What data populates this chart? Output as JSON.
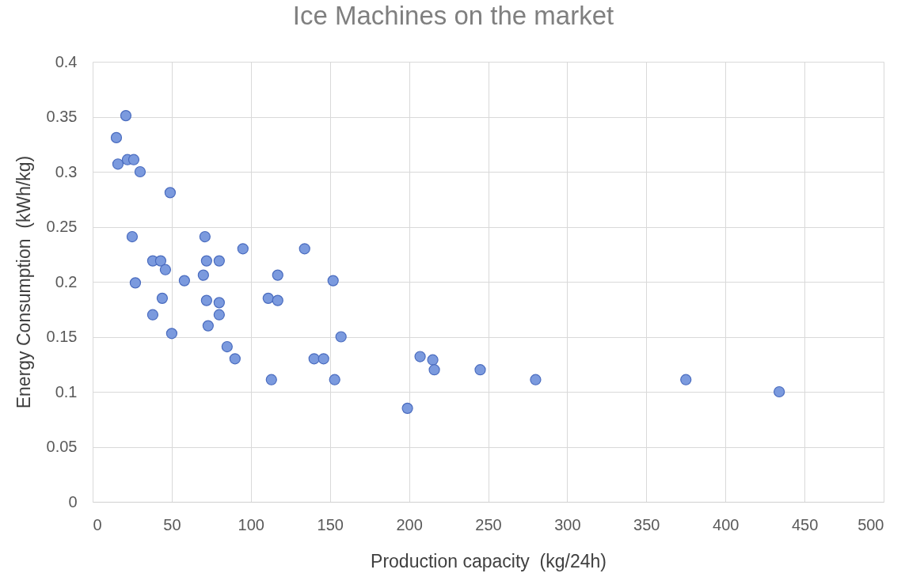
{
  "chart_data": {
    "type": "scatter",
    "title": "Ice Machines on the market",
    "xlabel": "Production capacity  (kg/24h)",
    "ylabel": "Energy Consumption  (kWh/kg)",
    "x": [
      15,
      21,
      16,
      22,
      26,
      30,
      49,
      25,
      71,
      95,
      38,
      43,
      46,
      72,
      80,
      70,
      58,
      27,
      117,
      44,
      72,
      80,
      80,
      38,
      73,
      50,
      85,
      90,
      113,
      111,
      117,
      134,
      152,
      157,
      140,
      146,
      153,
      207,
      215,
      216,
      245,
      280,
      375,
      434,
      199
    ],
    "values": [
      0.331,
      0.351,
      0.307,
      0.311,
      0.311,
      0.3,
      0.281,
      0.241,
      0.241,
      0.23,
      0.219,
      0.219,
      0.211,
      0.219,
      0.219,
      0.206,
      0.201,
      0.199,
      0.206,
      0.185,
      0.183,
      0.181,
      0.17,
      0.17,
      0.16,
      0.153,
      0.141,
      0.13,
      0.111,
      0.185,
      0.183,
      0.23,
      0.201,
      0.15,
      0.13,
      0.13,
      0.111,
      0.132,
      0.129,
      0.12,
      0.12,
      0.111,
      0.111,
      0.1,
      0.085
    ],
    "color": "#7b9ade",
    "marker": "circle",
    "xlim": [
      0,
      500
    ],
    "xticks": [
      0,
      50,
      100,
      150,
      200,
      250,
      300,
      350,
      400,
      450,
      500
    ],
    "ylim": [
      0,
      0.4
    ],
    "yticks": [
      0,
      0.05,
      0.1,
      0.15,
      0.2,
      0.25,
      0.3,
      0.35,
      0.4
    ],
    "grid": true
  }
}
